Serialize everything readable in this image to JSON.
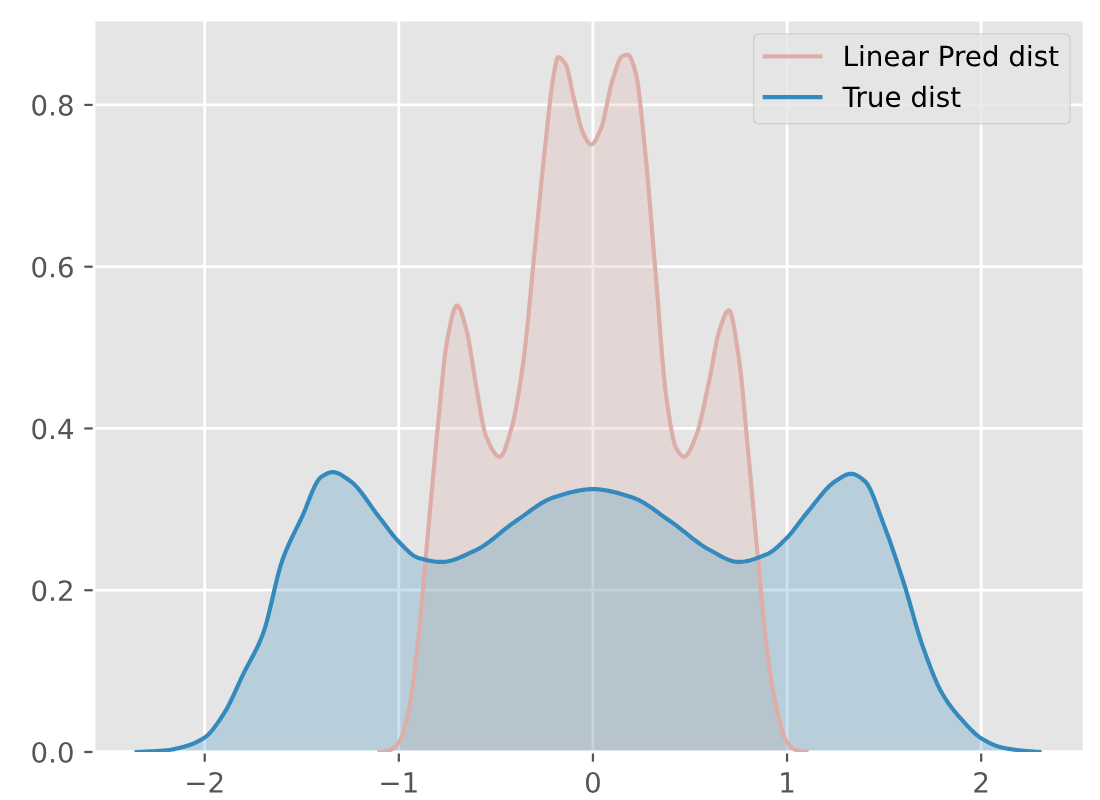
{
  "chart_data": {
    "type": "area",
    "series": [
      {
        "name": "Linear Pred dist",
        "color": "#dcaea7",
        "x": [
          -1.1,
          -1.05,
          -1.0,
          -0.95,
          -0.9,
          -0.85,
          -0.8,
          -0.75,
          -0.7,
          -0.65,
          -0.6,
          -0.55,
          -0.48,
          -0.42,
          -0.36,
          -0.3,
          -0.25,
          -0.2,
          -0.18,
          -0.14,
          -0.1,
          -0.05,
          -0.01,
          0.04,
          0.1,
          0.15,
          0.18,
          0.22,
          0.27,
          0.32,
          0.38,
          0.43,
          0.47,
          0.53,
          0.6,
          0.65,
          0.7,
          0.75,
          0.8,
          0.85,
          0.9,
          0.95,
          1.0,
          1.05,
          1.1
        ],
        "values": [
          0.0,
          0.002,
          0.012,
          0.05,
          0.14,
          0.27,
          0.4,
          0.51,
          0.552,
          0.52,
          0.45,
          0.39,
          0.365,
          0.4,
          0.48,
          0.62,
          0.74,
          0.84,
          0.859,
          0.85,
          0.81,
          0.765,
          0.751,
          0.77,
          0.83,
          0.86,
          0.862,
          0.84,
          0.74,
          0.6,
          0.435,
          0.375,
          0.365,
          0.39,
          0.46,
          0.52,
          0.546,
          0.49,
          0.37,
          0.24,
          0.12,
          0.05,
          0.012,
          0.002,
          0.0
        ]
      },
      {
        "name": "True dist",
        "color": "#348abd",
        "x": [
          -2.35,
          -2.2,
          -2.1,
          -2.0,
          -1.9,
          -1.8,
          -1.7,
          -1.6,
          -1.5,
          -1.4,
          -1.34,
          -1.25,
          -1.1,
          -1.0,
          -0.9,
          -0.78,
          -0.6,
          -0.4,
          -0.2,
          0.0,
          0.2,
          0.4,
          0.6,
          0.75,
          0.9,
          1.0,
          1.1,
          1.25,
          1.33,
          1.4,
          1.5,
          1.6,
          1.7,
          1.8,
          1.9,
          2.0,
          2.1,
          2.2,
          2.3
        ],
        "values": [
          0.0,
          0.002,
          0.007,
          0.018,
          0.048,
          0.097,
          0.146,
          0.237,
          0.29,
          0.34,
          0.346,
          0.335,
          0.29,
          0.26,
          0.24,
          0.235,
          0.25,
          0.285,
          0.315,
          0.325,
          0.315,
          0.285,
          0.25,
          0.235,
          0.245,
          0.265,
          0.295,
          0.335,
          0.344,
          0.335,
          0.28,
          0.21,
          0.13,
          0.072,
          0.04,
          0.017,
          0.006,
          0.002,
          0.0
        ]
      }
    ],
    "xlim": [
      -2.57,
      2.53
    ],
    "xticks": [
      {
        "value": -2,
        "label": "−2"
      },
      {
        "value": -1,
        "label": "−1"
      },
      0,
      1,
      2
    ],
    "ylim": [
      0,
      0.905
    ],
    "yticks": [
      {
        "value": 0,
        "label": "0.0"
      },
      0.2,
      0.4,
      0.6,
      0.8
    ],
    "grid": true,
    "legend": "top right",
    "line_style": "solid",
    "marker": "none"
  }
}
